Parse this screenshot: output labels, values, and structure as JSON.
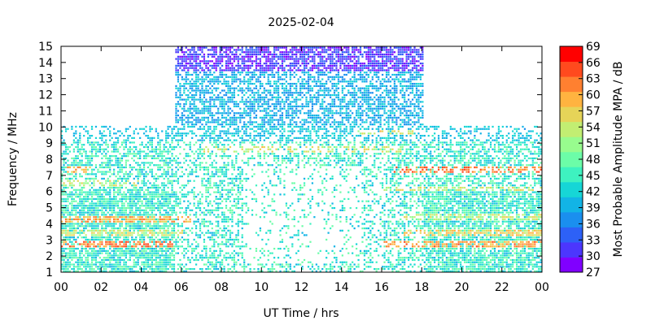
{
  "chart_data": {
    "type": "heatmap",
    "title": "2025-02-04",
    "xlabel": "UT Time / hrs",
    "ylabel": "Frequency / MHz",
    "xlim": [
      0,
      24
    ],
    "ylim": [
      1,
      15
    ],
    "x_ticks": [
      "00",
      "02",
      "04",
      "06",
      "08",
      "10",
      "12",
      "14",
      "16",
      "18",
      "20",
      "22",
      "00"
    ],
    "y_ticks": [
      "1",
      "2",
      "3",
      "4",
      "5",
      "6",
      "7",
      "8",
      "9",
      "10",
      "11",
      "12",
      "13",
      "14",
      "15"
    ],
    "colorbar": {
      "label": "Most Probable Amplitude MPA / dB",
      "range": [
        27,
        69
      ],
      "ticks": [
        "27",
        "30",
        "33",
        "36",
        "39",
        "42",
        "45",
        "48",
        "51",
        "54",
        "57",
        "60",
        "63",
        "66",
        "69"
      ],
      "colors": [
        "#8000ff",
        "#4c36fd",
        "#2d61f7",
        "#1a8fef",
        "#12b4e6",
        "#16d6d6",
        "#3ef2c0",
        "#6cfda8",
        "#98fc8e",
        "#c2ee72",
        "#e6d458",
        "#ffb340",
        "#ff8030",
        "#ff4a1e",
        "#ff0000"
      ]
    },
    "coverage": {
      "night_band_mhz": [
        1,
        10
      ],
      "day_band_mhz": [
        1,
        15
      ],
      "day_hours": [
        5.6,
        18
      ]
    },
    "intense_bands": [
      {
        "freq_mhz": 2.7,
        "hours": [
          0,
          5.5
        ],
        "value_db": 66
      },
      {
        "freq_mhz": 4.2,
        "hours": [
          0,
          6.5
        ],
        "value_db": 63
      },
      {
        "freq_mhz": 3.4,
        "hours": [
          0,
          6
        ],
        "value_db": 58
      },
      {
        "freq_mhz": 6.4,
        "hours": [
          0,
          4
        ],
        "value_db": 56
      },
      {
        "freq_mhz": 7.3,
        "hours": [
          0.3,
          1.5
        ],
        "value_db": 62
      },
      {
        "freq_mhz": 8.5,
        "hours": [
          7,
          17
        ],
        "value_db": 58
      },
      {
        "freq_mhz": 7.3,
        "hours": [
          16.5,
          24
        ],
        "value_db": 66
      },
      {
        "freq_mhz": 2.7,
        "hours": [
          16,
          24
        ],
        "value_db": 64
      },
      {
        "freq_mhz": 3.4,
        "hours": [
          17,
          24
        ],
        "value_db": 60
      },
      {
        "freq_mhz": 6.1,
        "hours": [
          16,
          24
        ],
        "value_db": 57
      },
      {
        "freq_mhz": 9.6,
        "hours": [
          14.5,
          17.5
        ],
        "value_db": 58
      },
      {
        "freq_mhz": 4.4,
        "hours": [
          17,
          24
        ],
        "value_db": 56
      }
    ]
  }
}
